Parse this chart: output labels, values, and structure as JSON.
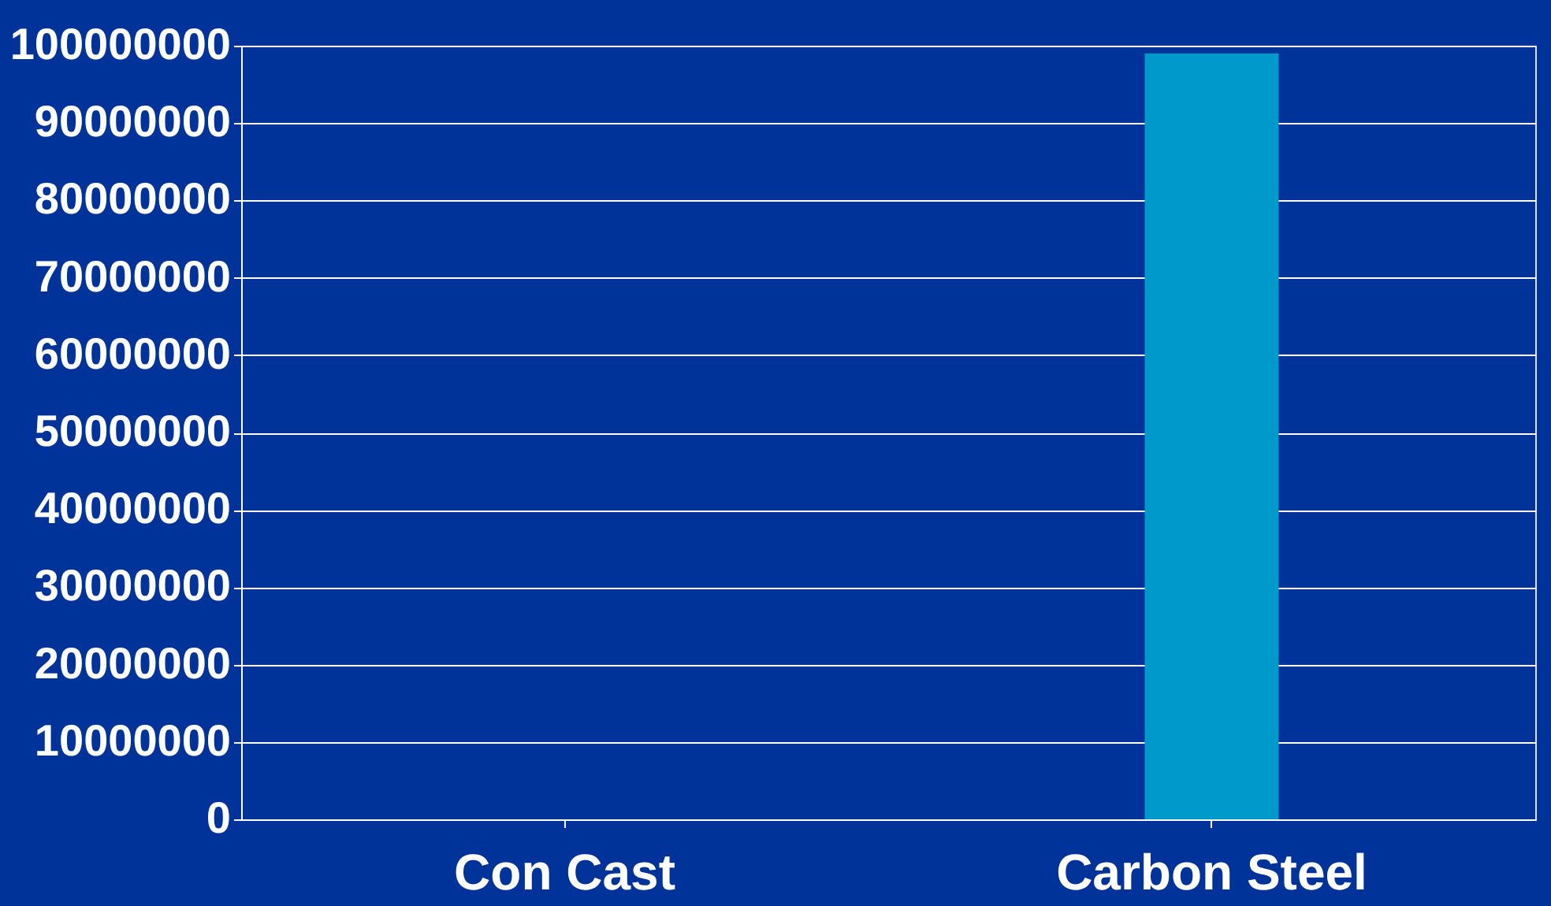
{
  "chart_data": {
    "type": "bar",
    "categories": [
      "Con Cast",
      "Carbon Steel"
    ],
    "values": [
      0,
      99000000
    ],
    "color": "#0099cc",
    "ylim": [
      0,
      100000000
    ],
    "yticks": [
      0,
      10000000,
      20000000,
      30000000,
      40000000,
      50000000,
      60000000,
      70000000,
      80000000,
      90000000,
      100000000
    ],
    "grid": "y"
  }
}
